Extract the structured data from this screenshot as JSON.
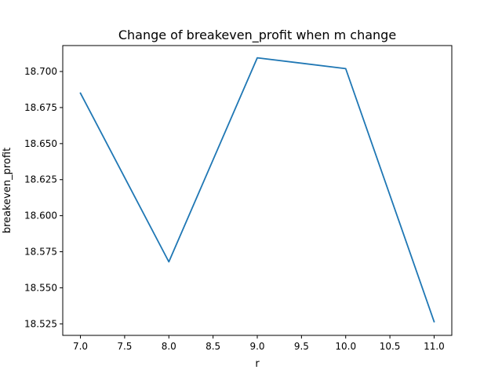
{
  "chart_data": {
    "type": "line",
    "title": "Change of breakeven_profit when m change",
    "xlabel": "r",
    "ylabel": "breakeven_profit",
    "x": [
      7.0,
      8.0,
      9.0,
      10.0,
      11.0
    ],
    "series": [
      {
        "values": [
          18.685,
          18.568,
          18.7095,
          18.702,
          18.5265
        ],
        "color": "#1f77b4"
      }
    ],
    "xlim": [
      6.8,
      11.2
    ],
    "ylim": [
      18.517,
      18.718
    ],
    "x_ticks": [
      {
        "value": 7.0,
        "label": "7.0"
      },
      {
        "value": 7.5,
        "label": "7.5"
      },
      {
        "value": 8.0,
        "label": "8.0"
      },
      {
        "value": 8.5,
        "label": "8.5"
      },
      {
        "value": 9.0,
        "label": "9.0"
      },
      {
        "value": 9.5,
        "label": "9.5"
      },
      {
        "value": 10.0,
        "label": "10.0"
      },
      {
        "value": 10.5,
        "label": "10.5"
      },
      {
        "value": 11.0,
        "label": "11.0"
      }
    ],
    "y_ticks": [
      {
        "value": 18.525,
        "label": "18.525"
      },
      {
        "value": 18.55,
        "label": "18.550"
      },
      {
        "value": 18.575,
        "label": "18.575"
      },
      {
        "value": 18.6,
        "label": "18.600"
      },
      {
        "value": 18.625,
        "label": "18.625"
      },
      {
        "value": 18.65,
        "label": "18.650"
      },
      {
        "value": 18.675,
        "label": "18.675"
      },
      {
        "value": 18.7,
        "label": "18.700"
      }
    ],
    "grid": false,
    "legend": "none"
  }
}
